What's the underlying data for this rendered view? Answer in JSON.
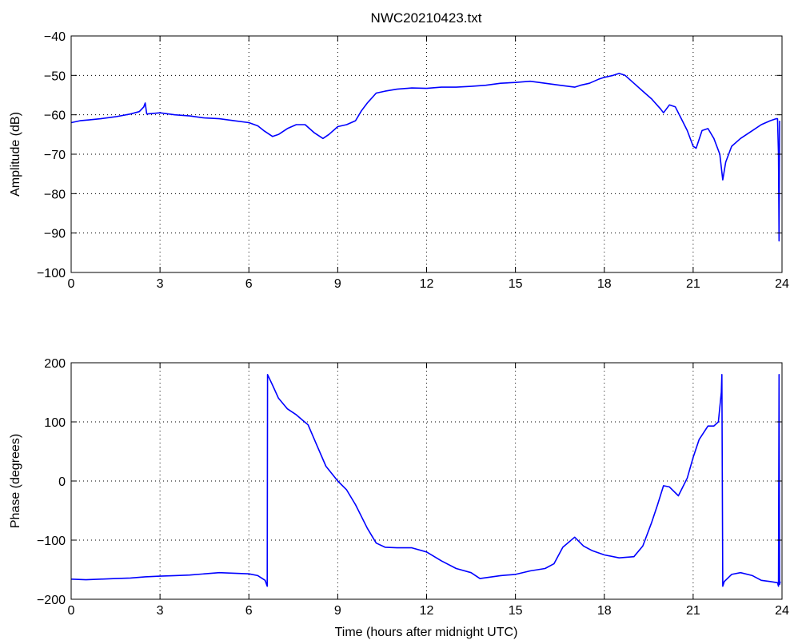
{
  "chart_data": [
    {
      "type": "line",
      "title": "NWC20210423.txt",
      "xlabel": "",
      "ylabel": "Amplitude (dB)",
      "xlim": [
        0,
        24
      ],
      "ylim": [
        -100,
        -40
      ],
      "xticks": [
        0,
        3,
        6,
        9,
        12,
        15,
        18,
        21,
        24
      ],
      "yticks": [
        -40,
        -50,
        -60,
        -70,
        -80,
        -90,
        -100
      ],
      "grid": true,
      "series": [
        {
          "color": "#0000ff",
          "x": [
            0,
            0.3,
            0.6,
            1.0,
            1.5,
            2.0,
            2.3,
            2.45,
            2.5,
            2.55,
            3.0,
            3.5,
            4.0,
            4.5,
            5.0,
            5.5,
            6.0,
            6.3,
            6.5,
            6.8,
            7.0,
            7.3,
            7.6,
            7.9,
            8.2,
            8.5,
            8.7,
            9.0,
            9.3,
            9.6,
            9.8,
            10.0,
            10.3,
            10.6,
            11.0,
            11.5,
            12.0,
            12.5,
            13.0,
            13.5,
            14.0,
            14.5,
            15.0,
            15.5,
            16.0,
            16.5,
            17.0,
            17.2,
            17.5,
            17.8,
            18.0,
            18.3,
            18.5,
            18.7,
            19.0,
            19.3,
            19.6,
            19.9,
            20.0,
            20.2,
            20.4,
            20.6,
            20.8,
            21.0,
            21.1,
            21.3,
            21.5,
            21.7,
            21.9,
            22.0,
            22.1,
            22.3,
            22.6,
            23.0,
            23.3,
            23.6,
            23.8,
            23.85,
            23.88,
            23.9,
            23.92
          ],
          "y": [
            -62,
            -61.5,
            -61.3,
            -61,
            -60.5,
            -59.8,
            -59.2,
            -58,
            -57,
            -59.8,
            -59.5,
            -60,
            -60.3,
            -60.8,
            -61,
            -61.5,
            -62,
            -62.8,
            -64,
            -65.5,
            -65,
            -63.5,
            -62.5,
            -62.5,
            -64.5,
            -66,
            -65,
            -63,
            -62.5,
            -61.5,
            -59,
            -57,
            -54.5,
            -54,
            -53.5,
            -53.2,
            -53.3,
            -53,
            -53,
            -52.8,
            -52.5,
            -52,
            -51.8,
            -51.5,
            -52,
            -52.5,
            -53,
            -52.5,
            -52,
            -51,
            -50.5,
            -50,
            -49.5,
            -50,
            -52,
            -54,
            -56,
            -58.5,
            -59.5,
            -57.5,
            -58,
            -61,
            -64,
            -68,
            -68.5,
            -64,
            -63.5,
            -66,
            -70,
            -76.5,
            -72,
            -68,
            -66,
            -64,
            -62.5,
            -61.5,
            -61,
            -61,
            -70,
            -92,
            -61.5
          ]
        }
      ]
    },
    {
      "type": "line",
      "title": "",
      "xlabel": "Time (hours after midnight UTC)",
      "ylabel": "Phase (degrees)",
      "xlim": [
        0,
        24
      ],
      "ylim": [
        -200,
        200
      ],
      "xticks": [
        0,
        3,
        6,
        9,
        12,
        15,
        18,
        21,
        24
      ],
      "yticks": [
        200,
        100,
        0,
        -100,
        -200
      ],
      "grid": true,
      "series": [
        {
          "color": "#0000ff",
          "x": [
            0,
            0.5,
            1.0,
            1.5,
            2.0,
            2.5,
            3.0,
            3.5,
            4.0,
            4.5,
            5.0,
            5.5,
            6.0,
            6.3,
            6.55,
            6.62,
            6.63,
            6.8,
            7.0,
            7.3,
            7.6,
            8.0,
            8.3,
            8.6,
            9.0,
            9.3,
            9.6,
            10.0,
            10.3,
            10.6,
            11.0,
            11.5,
            12.0,
            12.5,
            13.0,
            13.5,
            13.8,
            14.5,
            15.0,
            15.5,
            16.0,
            16.3,
            16.6,
            17.0,
            17.3,
            17.6,
            18.0,
            18.5,
            19.0,
            19.3,
            19.6,
            19.8,
            20.0,
            20.2,
            20.5,
            20.8,
            21.0,
            21.2,
            21.5,
            21.7,
            21.85,
            21.95,
            21.97,
            22.0,
            22.05,
            22.3,
            22.6,
            23.0,
            23.3,
            23.6,
            23.85,
            23.88,
            23.9,
            23.92,
            23.94
          ],
          "y": [
            -166,
            -167,
            -166,
            -165,
            -164,
            -162,
            -161,
            -160,
            -159,
            -157,
            -155,
            -156,
            -157,
            -160,
            -168,
            -178,
            180,
            162,
            140,
            122,
            112,
            95,
            60,
            25,
            0,
            -15,
            -40,
            -80,
            -105,
            -112,
            -113,
            -113,
            -120,
            -135,
            -148,
            -155,
            -165,
            -160,
            -158,
            -152,
            -148,
            -140,
            -112,
            -95,
            -110,
            -118,
            -125,
            -130,
            -128,
            -110,
            -70,
            -40,
            -8,
            -10,
            -25,
            5,
            40,
            70,
            93,
            93,
            100,
            150,
            180,
            -178,
            -170,
            -158,
            -155,
            -160,
            -168,
            -170,
            -172,
            -178,
            180,
            -175,
            -170
          ]
        }
      ]
    }
  ]
}
